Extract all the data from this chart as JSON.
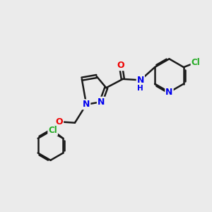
{
  "background_color": "#ebebeb",
  "bond_color": "#1a1a1a",
  "bond_width": 1.8,
  "atom_colors": {
    "C": "#1a1a1a",
    "N": "#0000ee",
    "O": "#ee0000",
    "Cl": "#22aa22",
    "H": "#0000ee"
  },
  "font_size": 9.0
}
